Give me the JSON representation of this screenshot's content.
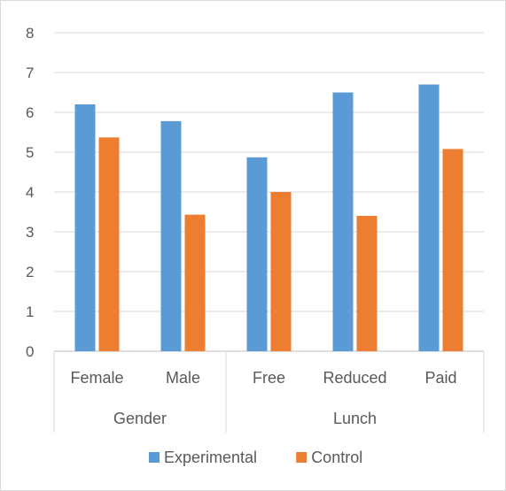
{
  "chart_data": {
    "type": "bar",
    "categories": [
      "Female",
      "Male",
      "Free",
      "Reduced",
      "Paid"
    ],
    "groups": [
      {
        "label": "Gender",
        "categories": [
          "Female",
          "Male"
        ]
      },
      {
        "label": "Lunch",
        "categories": [
          "Free",
          "Reduced",
          "Paid"
        ]
      }
    ],
    "series": [
      {
        "name": "Experimental",
        "color": "#5B9BD5",
        "values": [
          6.2,
          5.78,
          4.87,
          6.5,
          6.7
        ]
      },
      {
        "name": "Control",
        "color": "#ED7D31",
        "values": [
          5.37,
          3.43,
          4.0,
          3.4,
          5.08
        ]
      }
    ],
    "yticks": [
      "0",
      "1",
      "2",
      "3",
      "4",
      "5",
      "6",
      "7",
      "8"
    ],
    "ylim": [
      0,
      8
    ],
    "grid": true,
    "legend_position": "bottom"
  }
}
